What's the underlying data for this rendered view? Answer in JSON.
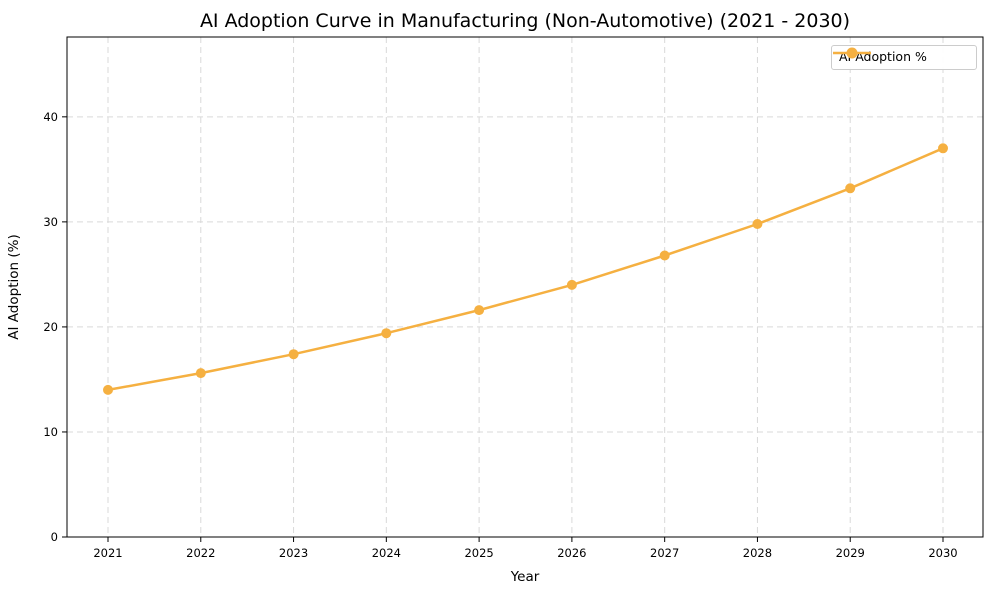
{
  "figure": {
    "background": "#ffffff"
  },
  "chart_data": {
    "type": "line",
    "title": "AI Adoption Curve in Manufacturing (Non-Automotive) (2021 - 2030)",
    "xlabel": "Year",
    "ylabel": "AI Adoption (%)",
    "x": [
      "2021",
      "2022",
      "2023",
      "2024",
      "2025",
      "2026",
      "2027",
      "2028",
      "2029",
      "2030"
    ],
    "series": [
      {
        "name": "AI Adoption %",
        "color": "#f5b041",
        "marker": "circle",
        "line_width": 2.5,
        "marker_radius": 5,
        "values": [
          14.0,
          15.6,
          17.4,
          19.4,
          21.6,
          24.0,
          26.8,
          29.8,
          33.2,
          37.0
        ]
      }
    ],
    "ylim": [
      0,
      47.6
    ],
    "yticks": [
      0,
      10,
      20,
      30,
      40
    ],
    "grid": true,
    "grid_style": "dashed",
    "grid_color": "#d9d9d9",
    "axis_color": "#000000",
    "tick_label_color": "#000000",
    "legend": {
      "position": "upper right",
      "entries": [
        "AI Adoption %"
      ]
    }
  }
}
